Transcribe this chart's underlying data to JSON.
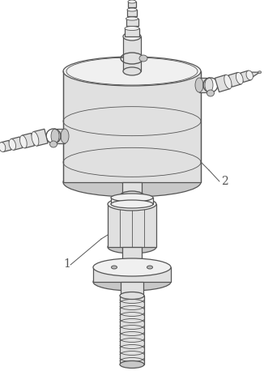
{
  "bg_color": "#ffffff",
  "line_color": "#555555",
  "fill_light": "#f0f0f0",
  "fill_mid": "#e0e0e0",
  "fill_dark": "#c8c8c8",
  "fill_darker": "#b8b8b8",
  "lw": 0.9,
  "lw_thin": 0.6,
  "label_1": "1",
  "label_2": "2",
  "figsize": [
    3.26,
    4.63
  ],
  "dpi": 100
}
